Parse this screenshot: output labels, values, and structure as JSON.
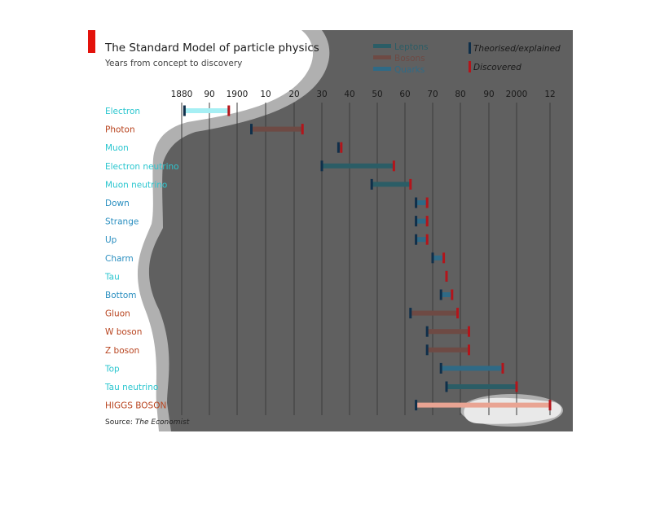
{
  "chart_data": {
    "type": "timeline-range",
    "title": "The Standard Model of particle physics",
    "subtitle": "Years from concept to discovery",
    "x_ticks": [
      {
        "label": "1880",
        "year": 1880
      },
      {
        "label": "90",
        "year": 1890
      },
      {
        "label": "1900",
        "year": 1900
      },
      {
        "label": "10",
        "year": 1910
      },
      {
        "label": "20",
        "year": 1920
      },
      {
        "label": "30",
        "year": 1930
      },
      {
        "label": "40",
        "year": 1940
      },
      {
        "label": "50",
        "year": 1950
      },
      {
        "label": "60",
        "year": 1960
      },
      {
        "label": "70",
        "year": 1970
      },
      {
        "label": "80",
        "year": 1980
      },
      {
        "label": "90",
        "year": 1990
      },
      {
        "label": "2000",
        "year": 2000
      },
      {
        "label": "12",
        "year": 2012
      }
    ],
    "xlim": [
      1880,
      2012
    ],
    "legend": {
      "categories": [
        {
          "name": "Leptons",
          "color": "#2b5d66"
        },
        {
          "name": "Bosons",
          "color": "#6e4a44"
        },
        {
          "name": "Quarks",
          "color": "#2f6a86"
        }
      ],
      "markers": [
        {
          "name": "Theorised/explained",
          "color": "#0f2f4a"
        },
        {
          "name": "Discovered",
          "color": "#b3151b"
        }
      ]
    },
    "particles": [
      {
        "name": "Electron",
        "category": "Leptons",
        "theorised": 1881,
        "discovered": 1897,
        "label_color": "#2bc6cf",
        "bar_color": "#a6eff4"
      },
      {
        "name": "Photon",
        "category": "Bosons",
        "theorised": 1905,
        "discovered": 1923,
        "label_color": "#b8441f",
        "bar_color": "#6e4a44"
      },
      {
        "name": "Muon",
        "category": "Leptons",
        "theorised": 1936,
        "discovered": 1937,
        "label_color": "#2bc6cf",
        "bar_color": "#2b5d66"
      },
      {
        "name": "Electron neutrino",
        "category": "Leptons",
        "theorised": 1930,
        "discovered": 1956,
        "label_color": "#2bc6cf",
        "bar_color": "#2b5d66"
      },
      {
        "name": "Muon neutrino",
        "category": "Leptons",
        "theorised": 1948,
        "discovered": 1962,
        "label_color": "#2bc6cf",
        "bar_color": "#2b5d66"
      },
      {
        "name": "Down",
        "category": "Quarks",
        "theorised": 1964,
        "discovered": 1968,
        "label_color": "#2b8fc0",
        "bar_color": "#2f6a86"
      },
      {
        "name": "Strange",
        "category": "Quarks",
        "theorised": 1964,
        "discovered": 1968,
        "label_color": "#2b8fc0",
        "bar_color": "#2f6a86"
      },
      {
        "name": "Up",
        "category": "Quarks",
        "theorised": 1964,
        "discovered": 1968,
        "label_color": "#2b8fc0",
        "bar_color": "#2f6a86"
      },
      {
        "name": "Charm",
        "category": "Quarks",
        "theorised": 1970,
        "discovered": 1974,
        "label_color": "#2b8fc0",
        "bar_color": "#2f6a86"
      },
      {
        "name": "Tau",
        "category": "Leptons",
        "theorised": 1975,
        "discovered": 1975,
        "label_color": "#2bc6cf",
        "bar_color": "#2b5d66"
      },
      {
        "name": "Bottom",
        "category": "Quarks",
        "theorised": 1973,
        "discovered": 1977,
        "label_color": "#2b8fc0",
        "bar_color": "#2f6a86"
      },
      {
        "name": "Gluon",
        "category": "Bosons",
        "theorised": 1962,
        "discovered": 1979,
        "label_color": "#b8441f",
        "bar_color": "#6e4a44"
      },
      {
        "name": "W boson",
        "category": "Bosons",
        "theorised": 1968,
        "discovered": 1983,
        "label_color": "#b8441f",
        "bar_color": "#6e4a44"
      },
      {
        "name": "Z boson",
        "category": "Bosons",
        "theorised": 1968,
        "discovered": 1983,
        "label_color": "#b8441f",
        "bar_color": "#6e4a44"
      },
      {
        "name": "Top",
        "category": "Quarks",
        "theorised": 1973,
        "discovered": 1995,
        "label_color": "#2bc6cf",
        "bar_color": "#2f6a86"
      },
      {
        "name": "Tau neutrino",
        "category": "Leptons",
        "theorised": 1975,
        "discovered": 2000,
        "label_color": "#2bc6cf",
        "bar_color": "#2b5d66"
      },
      {
        "name": "HIGGS BOSON",
        "category": "Bosons",
        "theorised": 1964,
        "discovered": 2012,
        "label_color": "#b8441f",
        "bar_color": "#e9a493"
      }
    ],
    "source_prefix": "Source: ",
    "source_name": "The Economist",
    "colors": {
      "theorised_marker": "#0f2f4a",
      "discovered_marker": "#b3151b",
      "plot_background": "#606060",
      "spotlight_halo": "#b0b0b0",
      "spotlight_fill": "#ffffff",
      "grid": "#3c3c3c",
      "logo_red": "#e3120b"
    }
  }
}
